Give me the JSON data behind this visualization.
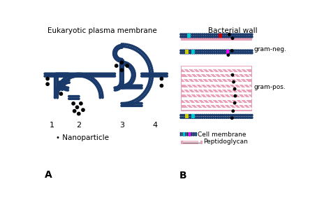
{
  "title_left": "Eukaryotic plasma membrane",
  "title_right": "Bacterial wall",
  "label_A": "A",
  "label_B": "B",
  "nanoparticle_label": "• Nanoparticle",
  "gram_neg_label": "gram-neg.",
  "gram_pos_label": "gram-pos.",
  "legend_cell_membrane": "Cell membrane",
  "legend_peptidoglycan": "Peptidoglycan",
  "membrane_color": "#1a3a6b",
  "pink_color": "#e8a0b8",
  "cyan_color": "#00c8d4",
  "yellow_color": "#cccc00",
  "magenta_color": "#ff00ff",
  "red_color": "#cc0000",
  "bg_color": "#ffffff"
}
